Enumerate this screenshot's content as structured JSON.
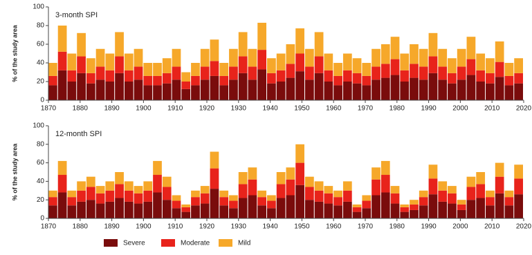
{
  "chart_data": [
    {
      "type": "bar",
      "stacked": true,
      "title": "3-month SPI",
      "ylabel": "% of the study area",
      "x": [
        1870,
        1873,
        1876,
        1879,
        1882,
        1885,
        1888,
        1891,
        1894,
        1897,
        1900,
        1903,
        1906,
        1909,
        1912,
        1915,
        1918,
        1921,
        1924,
        1927,
        1930,
        1933,
        1936,
        1939,
        1942,
        1945,
        1948,
        1951,
        1954,
        1957,
        1960,
        1963,
        1966,
        1969,
        1972,
        1975,
        1978,
        1981,
        1984,
        1987,
        1990,
        1993,
        1996,
        1999,
        2002,
        2005,
        2008,
        2011,
        2014,
        2017
      ],
      "series": [
        {
          "color": "#7a0c0c",
          "values": [
            16,
            32,
            20,
            29,
            18,
            22,
            20,
            29,
            20,
            22,
            16,
            16,
            18,
            22,
            12,
            16,
            22,
            26,
            16,
            22,
            29,
            22,
            33,
            18,
            20,
            24,
            31,
            22,
            29,
            20,
            16,
            20,
            18,
            16,
            22,
            24,
            27,
            20,
            24,
            22,
            29,
            22,
            18,
            22,
            27,
            20,
            18,
            25,
            16,
            18
          ]
        },
        {
          "color": "#e8231b",
          "values": [
            10,
            20,
            12,
            18,
            11,
            14,
            12,
            18,
            12,
            14,
            10,
            10,
            11,
            14,
            8,
            10,
            14,
            16,
            10,
            14,
            18,
            14,
            21,
            11,
            12,
            15,
            19,
            14,
            18,
            12,
            10,
            12,
            11,
            10,
            14,
            15,
            17,
            12,
            15,
            14,
            18,
            14,
            11,
            14,
            17,
            12,
            11,
            16,
            10,
            11
          ]
        },
        {
          "color": "#f6a82a",
          "values": [
            14,
            28,
            18,
            25,
            16,
            19,
            18,
            26,
            18,
            19,
            14,
            14,
            16,
            19,
            10,
            14,
            19,
            23,
            14,
            19,
            26,
            19,
            29,
            16,
            18,
            21,
            27,
            19,
            26,
            18,
            14,
            18,
            16,
            14,
            19,
            21,
            24,
            18,
            21,
            19,
            25,
            19,
            16,
            19,
            24,
            18,
            16,
            22,
            14,
            16
          ]
        }
      ],
      "xlim": [
        1870,
        2020
      ],
      "xticks": [
        1870,
        1880,
        1890,
        1900,
        1910,
        1920,
        1930,
        1940,
        1950,
        1960,
        1970,
        1980,
        1990,
        2000,
        2010,
        2020
      ],
      "ylim": [
        0,
        100
      ],
      "yticks": [
        0,
        20,
        40,
        60,
        80,
        100
      ]
    },
    {
      "type": "bar",
      "stacked": true,
      "title": "12-month SPI",
      "ylabel": "% of the study area",
      "x": [
        1870,
        1873,
        1876,
        1879,
        1882,
        1885,
        1888,
        1891,
        1894,
        1897,
        1900,
        1903,
        1906,
        1909,
        1912,
        1915,
        1918,
        1921,
        1924,
        1927,
        1930,
        1933,
        1936,
        1939,
        1942,
        1945,
        1948,
        1951,
        1954,
        1957,
        1960,
        1963,
        1966,
        1969,
        1972,
        1975,
        1978,
        1981,
        1984,
        1987,
        1990,
        1993,
        1996,
        1999,
        2002,
        2005,
        2008,
        2011,
        2014,
        2017
      ],
      "series": [
        {
          "name": "Severe",
          "color": "#7a0c0c",
          "values": [
            14,
            28,
            14,
            18,
            20,
            16,
            18,
            22,
            18,
            16,
            18,
            28,
            20,
            11,
            7,
            14,
            16,
            32,
            14,
            11,
            22,
            25,
            14,
            11,
            22,
            25,
            36,
            20,
            18,
            16,
            14,
            18,
            7,
            11,
            25,
            28,
            16,
            7,
            9,
            14,
            26,
            18,
            16,
            9,
            20,
            22,
            14,
            27,
            14,
            26
          ]
        },
        {
          "name": "Moderate",
          "color": "#e8231b",
          "values": [
            9,
            19,
            9,
            12,
            14,
            11,
            12,
            15,
            12,
            11,
            12,
            19,
            14,
            8,
            5,
            9,
            11,
            22,
            9,
            8,
            15,
            17,
            9,
            8,
            15,
            17,
            24,
            14,
            12,
            11,
            9,
            12,
            5,
            8,
            17,
            19,
            11,
            5,
            6,
            9,
            17,
            12,
            11,
            6,
            14,
            15,
            9,
            18,
            9,
            17
          ]
        },
        {
          "name": "Mild",
          "color": "#f6a82a",
          "values": [
            7,
            15,
            7,
            10,
            11,
            8,
            10,
            13,
            10,
            8,
            10,
            15,
            11,
            6,
            3,
            7,
            8,
            18,
            7,
            6,
            13,
            13,
            7,
            6,
            13,
            13,
            20,
            11,
            10,
            8,
            7,
            10,
            3,
            6,
            13,
            15,
            8,
            3,
            5,
            7,
            15,
            10,
            8,
            5,
            11,
            13,
            7,
            15,
            7,
            15
          ]
        }
      ],
      "xlim": [
        1870,
        2020
      ],
      "xticks": [
        1870,
        1880,
        1890,
        1900,
        1910,
        1920,
        1930,
        1940,
        1950,
        1960,
        1970,
        1980,
        1990,
        2000,
        2010,
        2020
      ],
      "ylim": [
        0,
        100
      ],
      "yticks": [
        0,
        20,
        40,
        60,
        80,
        100
      ]
    }
  ]
}
